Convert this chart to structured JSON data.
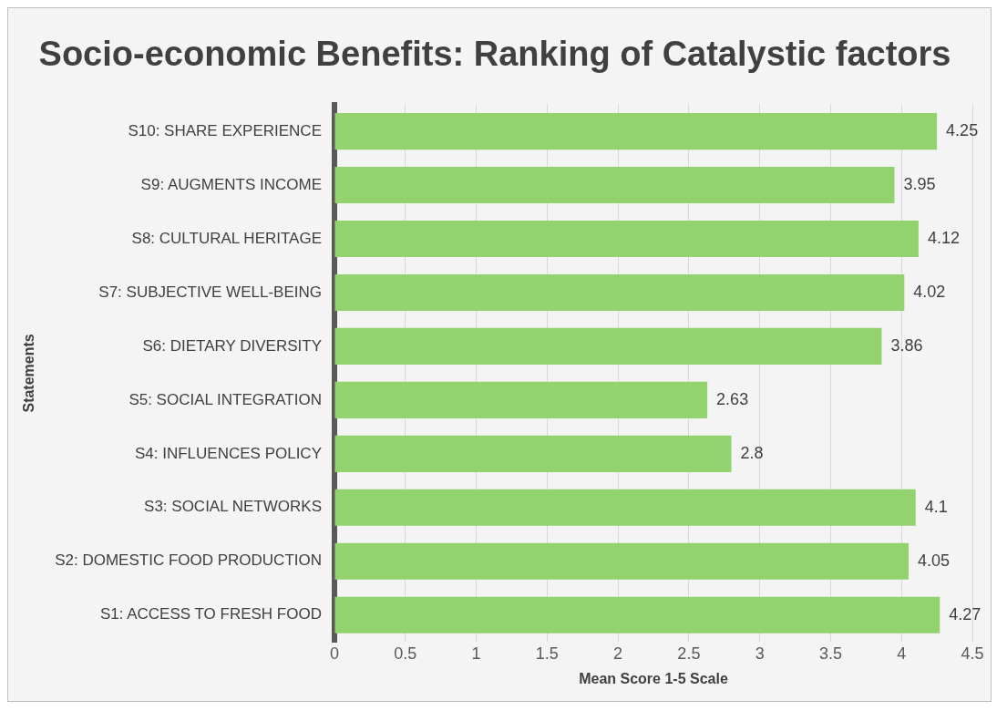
{
  "chart_data": {
    "type": "bar",
    "orientation": "horizontal",
    "title": "Socio-economic Benefits: Ranking of Catalystic factors",
    "xlabel": "Mean Score 1-5 Scale",
    "ylabel": "Statements",
    "categories": [
      "S10: SHARE EXPERIENCE",
      "S9: AUGMENTS INCOME",
      "S8: CULTURAL HERITAGE",
      "S7: SUBJECTIVE WELL-BEING",
      "S6: DIETARY DIVERSITY",
      "S5: SOCIAL INTEGRATION",
      "S4: INFLUENCES POLICY",
      "S3: SOCIAL NETWORKS",
      "S2: DOMESTIC FOOD PRODUCTION",
      "S1: ACCESS TO FRESH FOOD"
    ],
    "values": [
      4.25,
      3.95,
      4.12,
      4.02,
      3.86,
      2.63,
      2.8,
      4.1,
      4.05,
      4.27
    ],
    "color": "#92d36e",
    "xlim": [
      0,
      4.5
    ],
    "xticks": [
      0,
      0.5,
      1,
      1.5,
      2,
      2.5,
      3,
      3.5,
      4,
      4.5
    ],
    "grid": "x",
    "data_labels": true,
    "legend": false
  }
}
